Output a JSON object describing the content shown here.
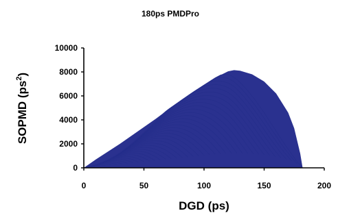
{
  "chart_data": {
    "type": "scatter",
    "title": "180ps PMDPro",
    "xlabel": "DGD (ps)",
    "ylabel": "SOPMD (ps",
    "ylabel_superscript": "2",
    "ylabel_suffix": ")",
    "xlim": [
      0,
      200
    ],
    "ylim": [
      0,
      10000
    ],
    "x_ticks": [
      "0",
      "50",
      "100",
      "150",
      "200"
    ],
    "y_ticks": [
      "0",
      "2000",
      "4000",
      "6000",
      "8000",
      "10000"
    ],
    "grid": false,
    "legend": "none",
    "series": [
      {
        "color": "#2a318f",
        "envelope_upper": {
          "x": [
            0,
            10,
            20,
            30,
            40,
            50,
            60,
            70,
            80,
            90,
            100,
            110,
            120,
            125,
            130,
            140,
            150,
            160,
            170,
            175,
            180,
            182
          ],
          "y": [
            0,
            700,
            1350,
            2000,
            2700,
            3400,
            4100,
            4850,
            5550,
            6250,
            6900,
            7550,
            8050,
            8150,
            8100,
            7800,
            7200,
            6200,
            4600,
            3300,
            1200,
            0
          ]
        },
        "envelope_lower": {
          "x": [
            0,
            182
          ],
          "y": [
            0,
            0
          ]
        }
      }
    ]
  }
}
